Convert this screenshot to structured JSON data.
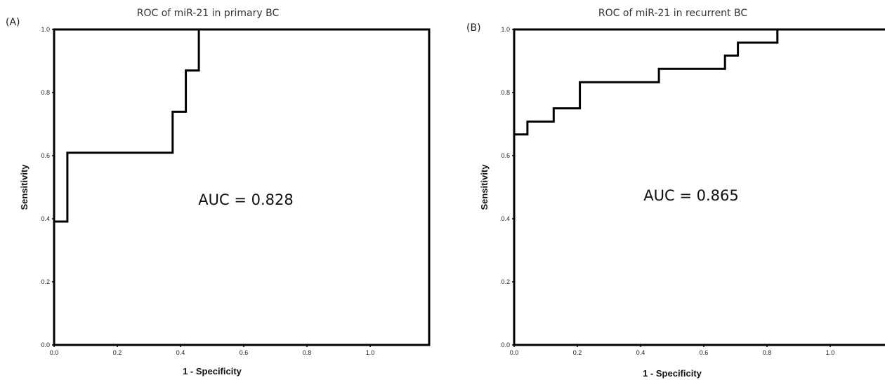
{
  "chart_data": [
    {
      "type": "line",
      "panel_label": "(A)",
      "title": "ROC of miR-21 in primary BC",
      "xlabel": "1 - Specificity",
      "ylabel": "Sensitivity",
      "annotation": "AUC = 0.828",
      "xlim": [
        0,
        1.2
      ],
      "ylim": [
        0,
        1.0
      ],
      "x_ticks": [
        "0.0",
        "0.2",
        "0.4",
        "0.6",
        "0.8",
        "1.0"
      ],
      "y_ticks": [
        "0.0",
        "0.2",
        "0.4",
        "0.6",
        "0.8",
        "1.0"
      ],
      "grid": false,
      "step": true,
      "series": [
        {
          "x": [
            0,
            0.042,
            0.042,
            0.375,
            0.375,
            0.417,
            0.417,
            0.458,
            0.458
          ],
          "y": [
            0.391,
            0.391,
            0.609,
            0.609,
            0.739,
            0.739,
            0.87,
            0.87,
            1.0
          ]
        }
      ]
    },
    {
      "type": "line",
      "panel_label": "(B)",
      "title": "ROC of miR-21 in recurrent BC",
      "xlabel": "1 - Specificity",
      "ylabel": "Sensitivity",
      "annotation": "AUC = 0.865",
      "xlim": [
        0,
        1.2
      ],
      "ylim": [
        0,
        1.0
      ],
      "x_ticks": [
        "0.0",
        "0.2",
        "0.4",
        "0.6",
        "0.8",
        "1.0"
      ],
      "y_ticks": [
        "0.0",
        "0.2",
        "0.4",
        "0.6",
        "0.8",
        "1.0"
      ],
      "grid": false,
      "step": true,
      "series": [
        {
          "x": [
            0,
            0,
            0.042,
            0.042,
            0.125,
            0.125,
            0.208,
            0.208,
            0.458,
            0.458,
            0.667,
            0.667,
            0.708,
            0.708,
            0.833,
            0.833
          ],
          "y": [
            0.667,
            0.667,
            0.667,
            0.708,
            0.708,
            0.75,
            0.75,
            0.833,
            0.833,
            0.875,
            0.875,
            0.917,
            0.917,
            0.958,
            0.958,
            1.0
          ]
        }
      ]
    }
  ]
}
